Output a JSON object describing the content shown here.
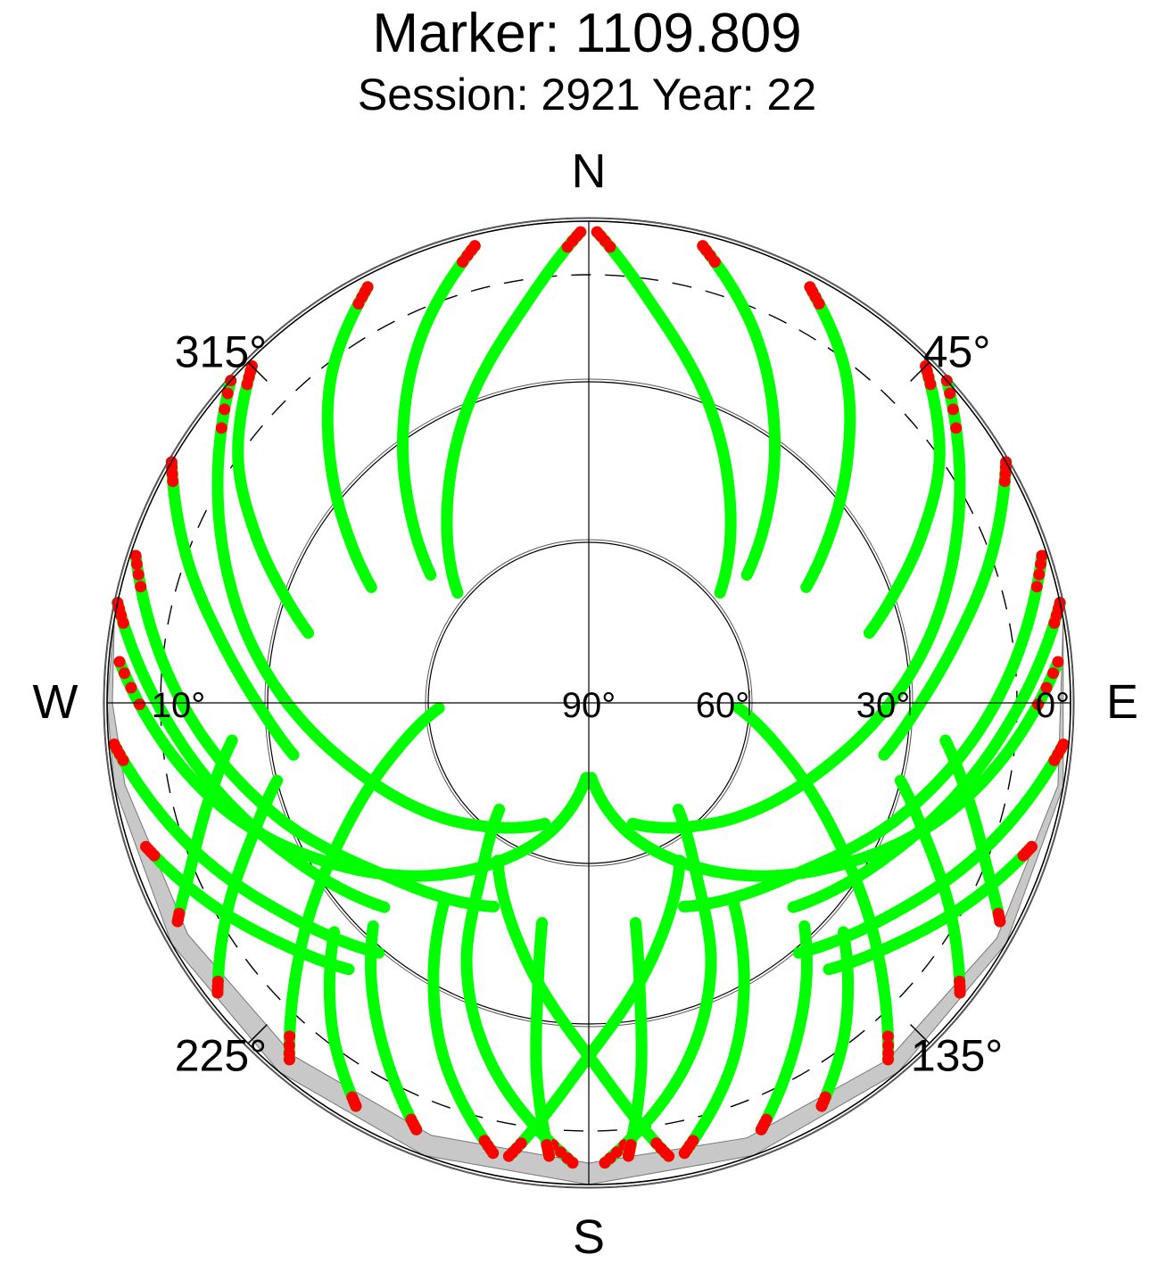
{
  "header": {
    "title": "Marker: 1109.809",
    "subtitle": "Session: 2921 Year: 22"
  },
  "colors": {
    "track": "#00ff00",
    "track_end": "#ff0000",
    "mask": "#c8c8c8",
    "grid": "#000000"
  },
  "chart_data": {
    "type": "scatter",
    "projection": "polar-skyplot",
    "cardinal_labels": {
      "north": "N",
      "east": "E",
      "south": "S",
      "west": "W"
    },
    "azimuth_labels": [
      "45°",
      "135°",
      "225°",
      "315°"
    ],
    "azimuth_label_values": [
      45,
      135,
      225,
      315
    ],
    "elevation_labels": [
      "0°",
      "30°",
      "60°",
      "90°",
      "10°"
    ],
    "elevation_label_values": [
      0,
      30,
      60,
      90,
      10
    ],
    "elevation_rings": [
      0,
      30,
      60
    ],
    "elevation_cutoff_dashed": 10,
    "grid": true,
    "elevation_mask": [
      [
        80,
        0
      ],
      [
        100,
        1
      ],
      [
        120,
        2
      ],
      [
        140,
        3
      ],
      [
        160,
        3.5
      ],
      [
        180,
        4
      ],
      [
        200,
        4
      ],
      [
        220,
        4
      ],
      [
        240,
        3.5
      ],
      [
        260,
        2
      ],
      [
        270,
        1
      ],
      [
        280,
        0
      ]
    ],
    "satellite_tracks": [
      {
        "az": [
          1,
          10,
          22,
          35,
          50
        ],
        "el": [
          2,
          16,
          30,
          44,
          58
        ]
      },
      {
        "az": [
          -1,
          -10,
          -22,
          -35,
          -50
        ],
        "el": [
          2,
          16,
          30,
          44,
          58
        ]
      },
      {
        "az": [
          14,
          24,
          34,
          43,
          51
        ],
        "el": [
          2,
          14,
          28,
          41,
          52
        ]
      },
      {
        "az": [
          -14,
          -24,
          -34,
          -43,
          -51
        ],
        "el": [
          2,
          14,
          28,
          41,
          52
        ]
      },
      {
        "az": [
          28,
          38,
          47,
          55,
          62
        ],
        "el": [
          2,
          12,
          24,
          35,
          44
        ]
      },
      {
        "az": [
          -28,
          -38,
          -47,
          -55,
          -62
        ],
        "el": [
          2,
          12,
          24,
          35,
          44
        ]
      },
      {
        "az": [
          45,
          55,
          63,
          70,
          76
        ],
        "el": [
          1,
          10,
          20,
          29,
          36
        ]
      },
      {
        "az": [
          -45,
          -55,
          -63,
          -70,
          -76
        ],
        "el": [
          1,
          10,
          20,
          29,
          36
        ]
      },
      {
        "az": [
          60,
          70,
          80,
          90,
          100
        ],
        "el": [
          0,
          10,
          20,
          28,
          34
        ]
      },
      {
        "az": [
          -60,
          -70,
          -80,
          -90,
          -100
        ],
        "el": [
          0,
          10,
          20,
          28,
          34
        ]
      },
      {
        "az": [
          72,
          90,
          110,
          130,
          155
        ],
        "el": [
          1,
          14,
          28,
          40,
          48
        ]
      },
      {
        "az": [
          -72,
          -90,
          -110,
          -130,
          -155
        ],
        "el": [
          1,
          14,
          28,
          40,
          48
        ]
      },
      {
        "az": [
          78,
          95,
          115,
          135
        ],
        "el": [
          0,
          13,
          26,
          36
        ]
      },
      {
        "az": [
          -78,
          -95,
          -115,
          -135
        ],
        "el": [
          0,
          13,
          26,
          36
        ]
      },
      {
        "az": [
          85,
          105,
          125,
          145,
          165,
          178
        ],
        "el": [
          2,
          18,
          36,
          52,
          66,
          76
        ]
      },
      {
        "az": [
          -85,
          -105,
          -125,
          -145,
          -165,
          -178
        ],
        "el": [
          2,
          18,
          36,
          52,
          66,
          76
        ]
      },
      {
        "az": [
          95,
          110,
          125,
          140
        ],
        "el": [
          1,
          11,
          21,
          29
        ]
      },
      {
        "az": [
          -95,
          -110,
          -125,
          -140
        ],
        "el": [
          1,
          11,
          21,
          29
        ]
      },
      {
        "az": [
          108,
          118,
          128,
          138
        ],
        "el": [
          3,
          10,
          17,
          23
        ]
      },
      {
        "az": [
          -108,
          -118,
          -128,
          -138
        ],
        "el": [
          3,
          10,
          17,
          23
        ]
      },
      {
        "az": [
          48,
          75,
          105,
          135,
          160
        ],
        "el": [
          0,
          22,
          44,
          58,
          66
        ]
      },
      {
        "az": [
          -48,
          -75,
          -105,
          -135,
          -160
        ],
        "el": [
          0,
          22,
          44,
          58,
          66
        ]
      },
      {
        "az": [
          178,
          165,
          155,
          148,
          140
        ],
        "el": [
          4,
          20,
          36,
          52,
          64
        ]
      },
      {
        "az": [
          182,
          195,
          205,
          212,
          220
        ],
        "el": [
          4,
          20,
          36,
          52,
          64
        ]
      },
      {
        "az": [
          168,
          158,
          150,
          144
        ],
        "el": [
          4,
          18,
          32,
          44
        ]
      },
      {
        "az": [
          192,
          202,
          210,
          216
        ],
        "el": [
          4,
          18,
          32,
          44
        ]
      },
      {
        "az": [
          175,
          172,
          170,
          168
        ],
        "el": [
          5,
          20,
          35,
          48
        ]
      },
      {
        "az": [
          185,
          188,
          190,
          192
        ],
        "el": [
          5,
          20,
          35,
          48
        ]
      },
      {
        "az": [
          158,
          150,
          142,
          136
        ],
        "el": [
          4,
          14,
          24,
          32
        ]
      },
      {
        "az": [
          202,
          210,
          218,
          224
        ],
        "el": [
          4,
          14,
          24,
          32
        ]
      },
      {
        "az": [
          150,
          143,
          137,
          132
        ],
        "el": [
          3,
          11,
          19,
          26
        ]
      },
      {
        "az": [
          210,
          217,
          223,
          228
        ],
        "el": [
          3,
          11,
          19,
          26
        ]
      },
      {
        "az": [
          140,
          130,
          118,
          105,
          92
        ],
        "el": [
          3,
          20,
          38,
          52,
          62
        ]
      },
      {
        "az": [
          220,
          230,
          242,
          255,
          268
        ],
        "el": [
          3,
          20,
          38,
          52,
          62
        ]
      },
      {
        "az": [
          128,
          120,
          112,
          104
        ],
        "el": [
          2,
          12,
          22,
          30
        ]
      },
      {
        "az": [
          232,
          240,
          248,
          256
        ],
        "el": [
          2,
          12,
          22,
          30
        ]
      },
      {
        "az": [
          118,
          112,
          104,
          96
        ],
        "el": [
          3,
          10,
          17,
          23
        ]
      },
      {
        "az": [
          242,
          248,
          256,
          264
        ],
        "el": [
          3,
          10,
          17,
          23
        ]
      },
      {
        "az": [
          170,
          180,
          195,
          210
        ],
        "el": [
          4,
          24,
          42,
          56
        ]
      },
      {
        "az": [
          190,
          180,
          165,
          150
        ],
        "el": [
          4,
          24,
          42,
          56
        ]
      }
    ]
  }
}
